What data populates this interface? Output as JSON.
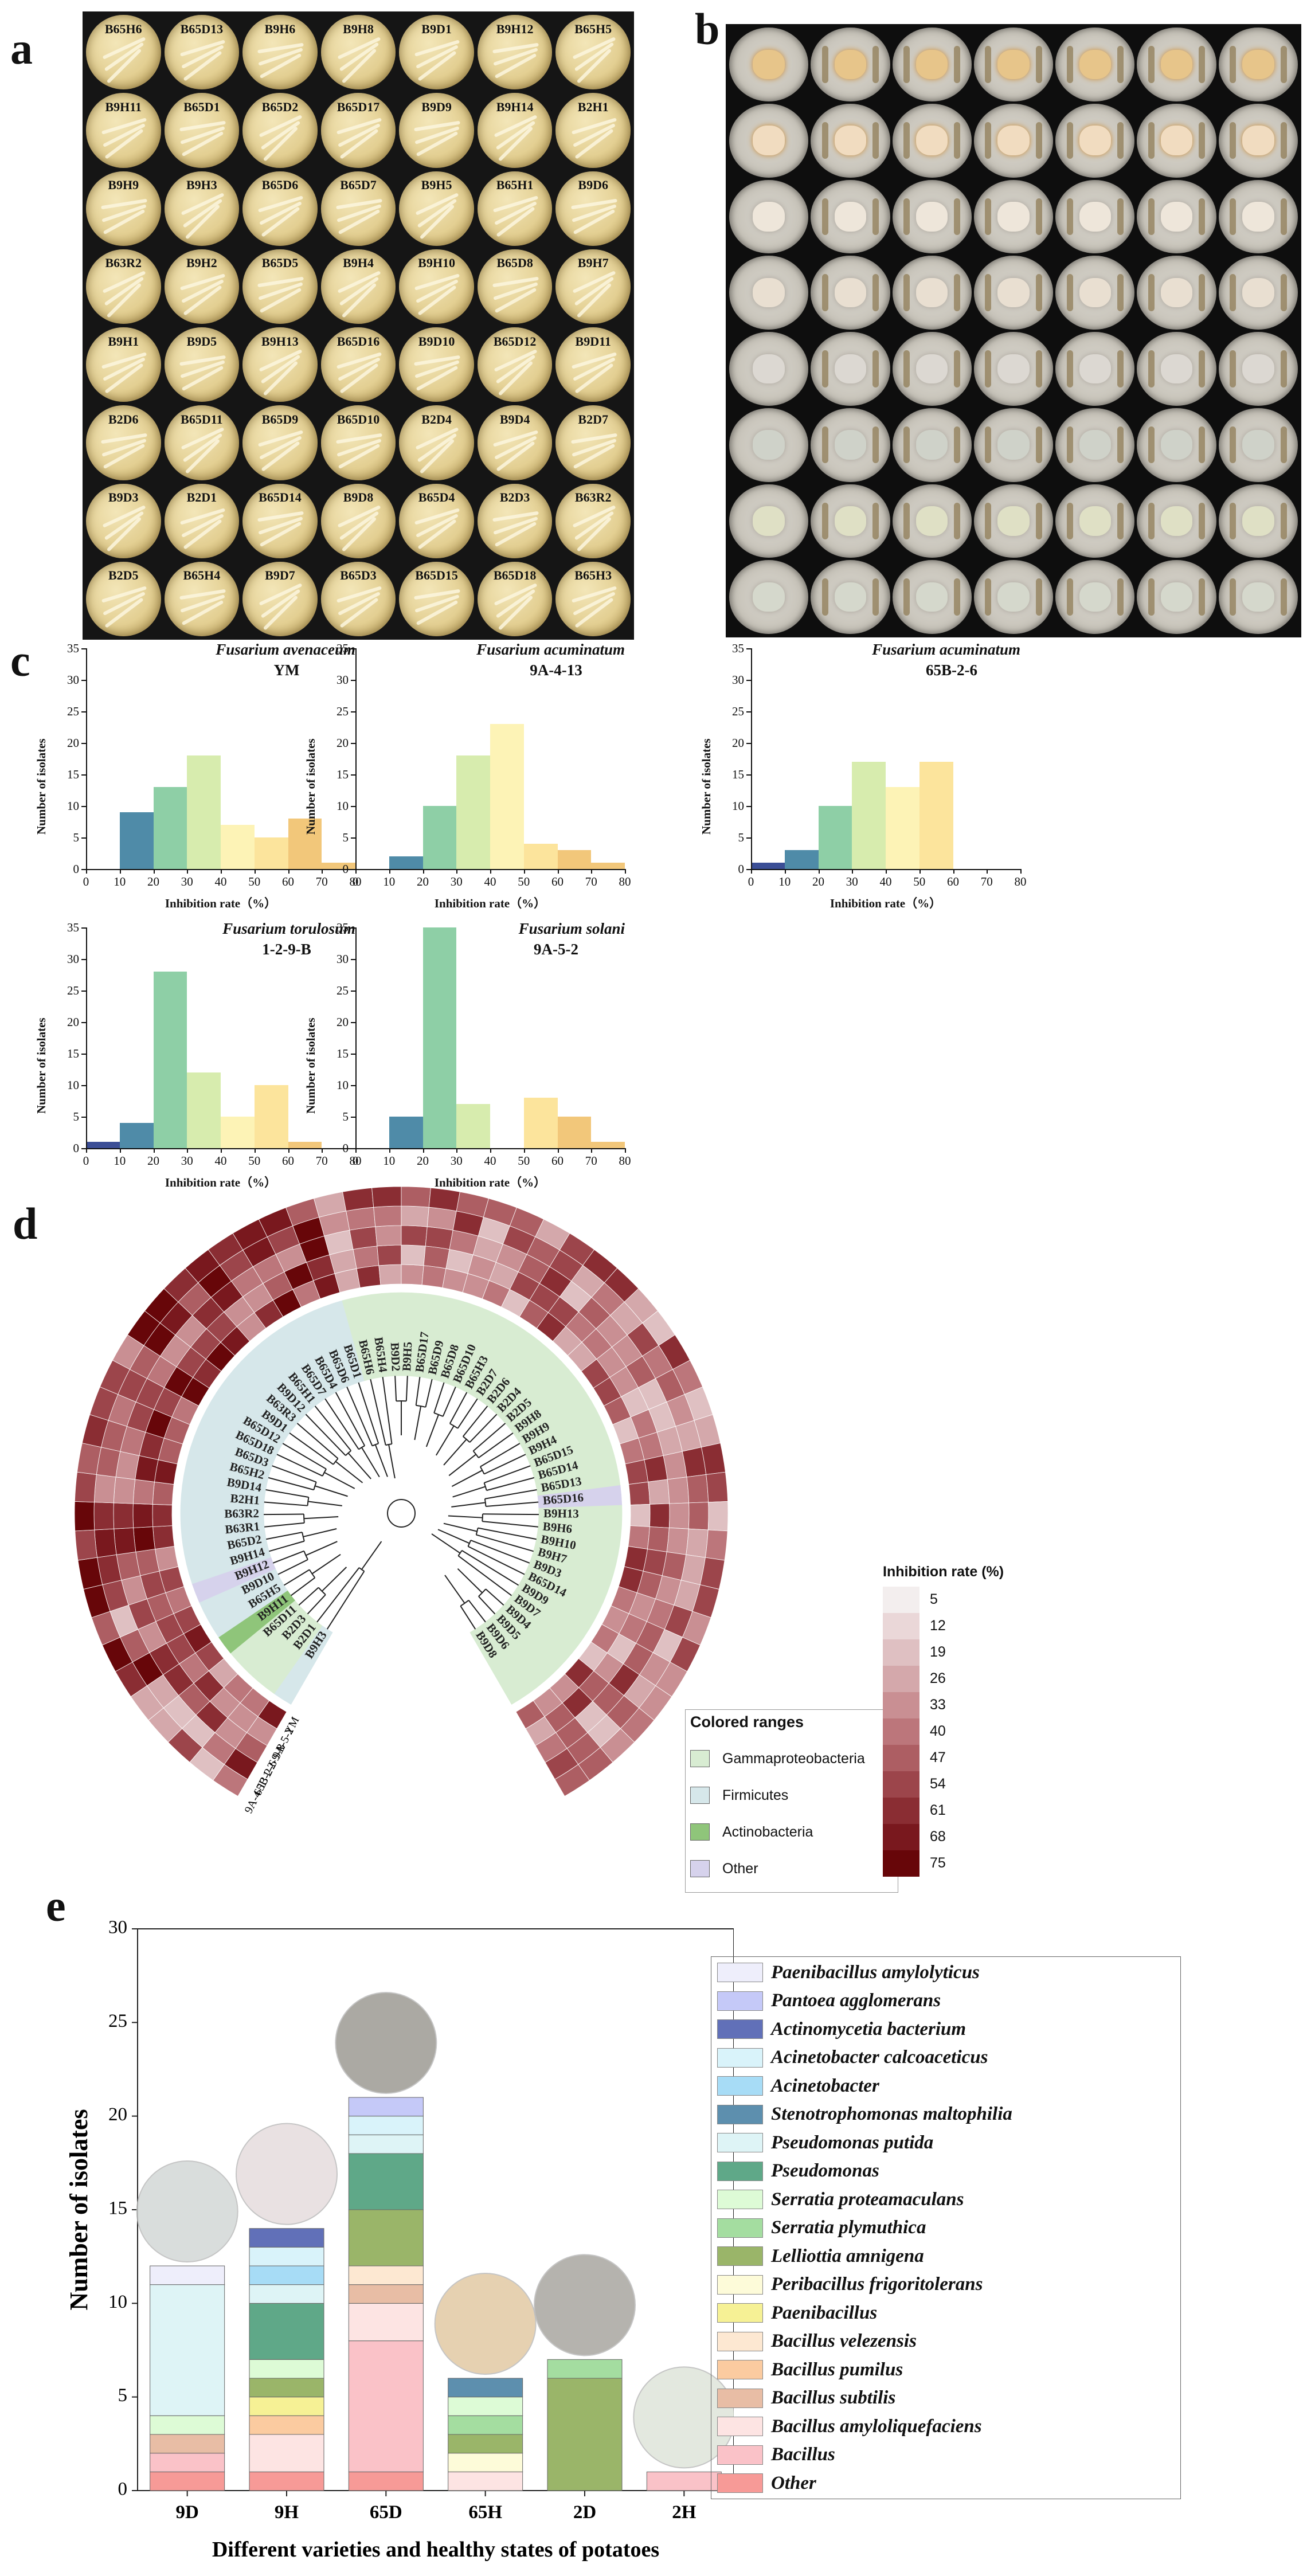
{
  "panel_letters": [
    "a",
    "b",
    "c",
    "d",
    "e"
  ],
  "panel_a": {
    "plates": [
      "B65H6",
      "B65D13",
      "B9H6",
      "B9H8",
      "B9D1",
      "B9H12",
      "B65H5",
      "B9H11",
      "B65D1",
      "B65D2",
      "B65D17",
      "B9D9",
      "B9H14",
      "B2H1",
      "B9H9",
      "B9H3",
      "B65D6",
      "B65D7",
      "B9H5",
      "B65H1",
      "B9D6",
      "B63R2",
      "B9H2",
      "B65D5",
      "B9H4",
      "B9H10",
      "B65D8",
      "B9H7",
      "B9H1",
      "B9D5",
      "B9H13",
      "B65D16",
      "B9D10",
      "B65D12",
      "B9D11",
      "B2D6",
      "B65D11",
      "B65D9",
      "B65D10",
      "B2D4",
      "B9D4",
      "B2D7",
      "B9D3",
      "B2D1",
      "B65D14",
      "B9D8",
      "B65D4",
      "B2D3",
      "B63R2",
      "B2D5",
      "B65H4",
      "B9D7",
      "B65D3",
      "B65D15",
      "B65D18",
      "B65H3"
    ]
  },
  "panel_c": {
    "charts": [
      {
        "type": "bar",
        "title_species": "Fusarium avenaceum",
        "title_strain": "YM",
        "xlabel": "Inhibition rate（%）",
        "ylabel": "Number of isolates",
        "xlim": [
          0,
          80
        ],
        "ylim": [
          0,
          35
        ],
        "bins": [
          10,
          20,
          30,
          40,
          50,
          60,
          70
        ],
        "values": [
          9,
          13,
          18,
          7,
          5,
          8,
          1
        ]
      },
      {
        "type": "bar",
        "title_species": "Fusarium acuminatum",
        "title_strain": "9A-4-13",
        "xlabel": "Inhibition rate（%）",
        "ylabel": "Number of isolates",
        "xlim": [
          0,
          80
        ],
        "ylim": [
          0,
          35
        ],
        "bins": [
          10,
          20,
          30,
          40,
          50,
          60,
          70
        ],
        "values": [
          2,
          10,
          18,
          23,
          4,
          3,
          1
        ]
      },
      {
        "type": "bar",
        "title_species": "Fusarium acuminatum",
        "title_strain": "65B-2-6",
        "xlabel": "Inhibition rate（%）",
        "ylabel": "Number of isolates",
        "xlim": [
          0,
          80
        ],
        "ylim": [
          0,
          35
        ],
        "bins": [
          0,
          10,
          20,
          30,
          40,
          50
        ],
        "values": [
          1,
          3,
          10,
          17,
          13,
          17
        ]
      },
      {
        "type": "bar",
        "title_species": "Fusarium torulosum",
        "title_strain": "1-2-9-B",
        "xlabel": "Inhibition rate（%）",
        "ylabel": "Number of isolates",
        "xlim": [
          0,
          80
        ],
        "ylim": [
          0,
          35
        ],
        "bins": [
          0,
          10,
          20,
          30,
          40,
          50,
          60
        ],
        "values": [
          1,
          4,
          28,
          12,
          5,
          10,
          1
        ]
      },
      {
        "type": "bar",
        "title_species": "Fusarium solani",
        "title_strain": "9A-5-2",
        "xlabel": "Inhibition rate（%）",
        "ylabel": "Number of isolates",
        "xlim": [
          0,
          80
        ],
        "ylim": [
          0,
          35
        ],
        "bins": [
          10,
          20,
          30,
          40,
          50,
          60,
          70
        ],
        "values": [
          5,
          35,
          7,
          0,
          8,
          5,
          1
        ]
      }
    ],
    "xticks": [
      "0",
      "10",
      "20",
      "30",
      "40",
      "50",
      "60",
      "70",
      "80"
    ],
    "yticks": [
      "0",
      "5",
      "10",
      "15",
      "20",
      "25",
      "30",
      "35"
    ],
    "bin_colors": [
      "#3b4e96",
      "#4f8ba8",
      "#8ecfa6",
      "#d7ecae",
      "#fdf3b6",
      "#fce49c",
      "#f2c77a"
    ]
  },
  "panel_d": {
    "ring_labels": [
      "YM",
      "9A-5-2",
      "1-2-9-B",
      "65B-2-6",
      "9A-4-13"
    ],
    "tips": [
      {
        "n": "B9H3",
        "g": "Firmicutes"
      },
      {
        "n": "B2D1",
        "g": "Gammaproteobacteria"
      },
      {
        "n": "B2D3",
        "g": "Gammaproteobacteria"
      },
      {
        "n": "B65D11",
        "g": "Gammaproteobacteria"
      },
      {
        "n": "B9H11",
        "g": "Actinobacteria"
      },
      {
        "n": "B65H5",
        "g": "Firmicutes"
      },
      {
        "n": "B9D10",
        "g": "Firmicutes"
      },
      {
        "n": "B9H12",
        "g": "Other"
      },
      {
        "n": "B9H14",
        "g": "Firmicutes"
      },
      {
        "n": "B65D2",
        "g": "Firmicutes"
      },
      {
        "n": "B63R1",
        "g": "Firmicutes"
      },
      {
        "n": "B63R2",
        "g": "Firmicutes"
      },
      {
        "n": "B2H1",
        "g": "Firmicutes"
      },
      {
        "n": "B9D14",
        "g": "Firmicutes"
      },
      {
        "n": "B65H2",
        "g": "Firmicutes"
      },
      {
        "n": "B65D3",
        "g": "Firmicutes"
      },
      {
        "n": "B65D18",
        "g": "Firmicutes"
      },
      {
        "n": "B65D12",
        "g": "Firmicutes"
      },
      {
        "n": "B9D1",
        "g": "Firmicutes"
      },
      {
        "n": "B63R3",
        "g": "Firmicutes"
      },
      {
        "n": "B9D12",
        "g": "Firmicutes"
      },
      {
        "n": "B65H1",
        "g": "Firmicutes"
      },
      {
        "n": "B65D7",
        "g": "Firmicutes"
      },
      {
        "n": "B65D4",
        "g": "Firmicutes"
      },
      {
        "n": "B65D6",
        "g": "Firmicutes"
      },
      {
        "n": "B65D1",
        "g": "Firmicutes"
      },
      {
        "n": "B65H6",
        "g": "Gammaproteobacteria"
      },
      {
        "n": "B65H4",
        "g": "Gammaproteobacteria"
      },
      {
        "n": "B9D2",
        "g": "Gammaproteobacteria"
      },
      {
        "n": "B9H5",
        "g": "Gammaproteobacteria"
      },
      {
        "n": "B65D17",
        "g": "Gammaproteobacteria"
      },
      {
        "n": "B65D9",
        "g": "Gammaproteobacteria"
      },
      {
        "n": "B65D8",
        "g": "Gammaproteobacteria"
      },
      {
        "n": "B65D10",
        "g": "Gammaproteobacteria"
      },
      {
        "n": "B65H3",
        "g": "Gammaproteobacteria"
      },
      {
        "n": "B2D7",
        "g": "Gammaproteobacteria"
      },
      {
        "n": "B2D6",
        "g": "Gammaproteobacteria"
      },
      {
        "n": "B2D4",
        "g": "Gammaproteobacteria"
      },
      {
        "n": "B2D5",
        "g": "Gammaproteobacteria"
      },
      {
        "n": "B9H8",
        "g": "Gammaproteobacteria"
      },
      {
        "n": "B9H9",
        "g": "Gammaproteobacteria"
      },
      {
        "n": "B9H4",
        "g": "Gammaproteobacteria"
      },
      {
        "n": "B65D15",
        "g": "Gammaproteobacteria"
      },
      {
        "n": "B65D14",
        "g": "Gammaproteobacteria"
      },
      {
        "n": "B65D13",
        "g": "Gammaproteobacteria"
      },
      {
        "n": "B65D16",
        "g": "Other"
      },
      {
        "n": "B9H13",
        "g": "Gammaproteobacteria"
      },
      {
        "n": "B9H6",
        "g": "Gammaproteobacteria"
      },
      {
        "n": "B9H10",
        "g": "Gammaproteobacteria"
      },
      {
        "n": "B9H7",
        "g": "Gammaproteobacteria"
      },
      {
        "n": "B9D3",
        "g": "Gammaproteobacteria"
      },
      {
        "n": "B65D14",
        "g": "Gammaproteobacteria"
      },
      {
        "n": "B9D9",
        "g": "Gammaproteobacteria"
      },
      {
        "n": "B9D7",
        "g": "Gammaproteobacteria"
      },
      {
        "n": "B9D4",
        "g": "Gammaproteobacteria"
      },
      {
        "n": "B9D5",
        "g": "Gammaproteobacteria"
      },
      {
        "n": "B9D6",
        "g": "Gammaproteobacteria"
      },
      {
        "n": "B9D8",
        "g": "Gammaproteobacteria"
      }
    ],
    "group_colors": {
      "Gammaproteobacteria": "#d8ecd2",
      "Firmicutes": "#d6e7ea",
      "Actinobacteria": "#8fc57a",
      "Other": "#d6d2ec"
    },
    "colored_ranges": {
      "title": "Colored ranges",
      "items": [
        {
          "label": "Gammaproteobacteria",
          "color": "#d8ecd2"
        },
        {
          "label": "Firmicutes",
          "color": "#d6e7ea"
        },
        {
          "label": "Actinobacteria",
          "color": "#8fc57a"
        },
        {
          "label": "Other",
          "color": "#d6d2ec"
        }
      ]
    },
    "colorbar": {
      "title": "Inhibition rate  (%)",
      "values": [
        "5",
        "12",
        "19",
        "26",
        "33",
        "40",
        "47",
        "54",
        "61",
        "68",
        "75"
      ],
      "colors": [
        "#f3eeee",
        "#ead7d8",
        "#dfc0c2",
        "#d4a8ab",
        "#c98f93",
        "#bc767b",
        "#ad5e63",
        "#9c454b",
        "#8a2d33",
        "#79181e",
        "#670609"
      ]
    }
  },
  "panel_e": {
    "chart_data": {
      "type": "bar",
      "stacked": true,
      "categories": [
        "9D",
        "9H",
        "65D",
        "65H",
        "2D",
        "2H"
      ],
      "xlabel": "Different varieties and healthy states of potatoes",
      "ylabel": "Number of isolates",
      "ylim": [
        0,
        30
      ],
      "yticks": [
        "0",
        "5",
        "10",
        "15",
        "20",
        "25",
        "30"
      ],
      "series": [
        {
          "name": "Other",
          "color": "#f79a97",
          "values": [
            1,
            1,
            1,
            0,
            0,
            0
          ]
        },
        {
          "name": "Bacillus",
          "color": "#fac2c8",
          "values": [
            1,
            0,
            7,
            0,
            0,
            1
          ]
        },
        {
          "name": "Bacillus amyloliquefaciens",
          "color": "#fde4e3",
          "values": [
            0,
            2,
            2,
            1,
            0,
            0
          ]
        },
        {
          "name": "Bacillus subtilis",
          "color": "#e8bda5",
          "values": [
            1,
            0,
            1,
            0,
            0,
            0
          ]
        },
        {
          "name": "Bacillus pumilus",
          "color": "#fbcba0",
          "values": [
            0,
            1,
            0,
            0,
            0,
            0
          ]
        },
        {
          "name": "Bacillus velezensis",
          "color": "#fde8d2",
          "values": [
            0,
            0,
            1,
            0,
            0,
            0
          ]
        },
        {
          "name": "Paenibacillus",
          "color": "#f6f195",
          "values": [
            0,
            1,
            0,
            0,
            0,
            0
          ]
        },
        {
          "name": "Peribacillus frigoritolerans",
          "color": "#fdfbd9",
          "values": [
            0,
            0,
            0,
            1,
            0,
            0
          ]
        },
        {
          "name": "Lelliottia amnigena",
          "color": "#9ab569",
          "values": [
            0,
            1,
            3,
            1,
            6,
            0
          ]
        },
        {
          "name": "Serratia plymuthica",
          "color": "#a4dda0",
          "values": [
            0,
            0,
            0,
            1,
            1,
            0
          ]
        },
        {
          "name": "Serratia proteamaculans",
          "color": "#ddfbd6",
          "values": [
            1,
            1,
            0,
            1,
            0,
            0
          ]
        },
        {
          "name": "Pseudomonas",
          "color": "#5fa888",
          "values": [
            0,
            3,
            3,
            0,
            0,
            0
          ]
        },
        {
          "name": "Pseudomonas putida",
          "color": "#def4f6",
          "values": [
            7,
            1,
            1,
            0,
            0,
            0
          ]
        },
        {
          "name": "Stenotrophomonas maltophilia",
          "color": "#5d8fae",
          "values": [
            0,
            0,
            0,
            1,
            0,
            0
          ]
        },
        {
          "name": "Acinetobacter",
          "color": "#a7dcf6",
          "values": [
            0,
            1,
            0,
            0,
            0,
            0
          ]
        },
        {
          "name": "Acinetobacter calcoaceticus",
          "color": "#d9f3fa",
          "values": [
            0,
            1,
            1,
            0,
            0,
            0
          ]
        },
        {
          "name": "Actinomycetia bacterium",
          "color": "#6170b8",
          "values": [
            0,
            1,
            0,
            0,
            0,
            0
          ]
        },
        {
          "name": "Pantoea agglomerans",
          "color": "#c5c9f8",
          "values": [
            0,
            0,
            1,
            0,
            0,
            0
          ]
        },
        {
          "name": "Paenibacillus amylolyticus",
          "color": "#eeeefb",
          "values": [
            1,
            0,
            0,
            0,
            0,
            0
          ]
        }
      ]
    }
  }
}
